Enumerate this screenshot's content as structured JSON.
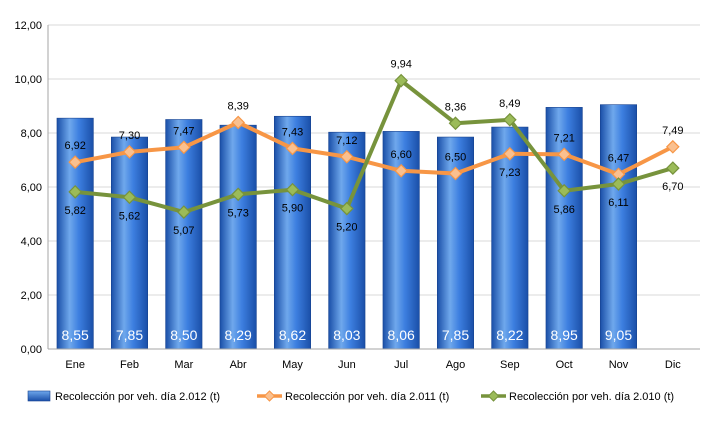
{
  "colors": {
    "bar_light": "#6FA8EC",
    "bar_mid": "#2F6FD0",
    "bar_dark": "#1A4FA8",
    "line_2011": "#F79646",
    "marker_2011_fill": "#FAC08F",
    "line_2010": "#77933C",
    "marker_2010_fill": "#9BBB59",
    "grid": "#D9D9D9",
    "axis_text": "#000000"
  },
  "chart_data": {
    "type": "bar",
    "categories": [
      "Ene",
      "Feb",
      "Mar",
      "Abr",
      "May",
      "Jun",
      "Jul",
      "Ago",
      "Sep",
      "Oct",
      "Nov",
      "Dic"
    ],
    "ylim": [
      0,
      12
    ],
    "yticks": [
      "0,00",
      "2,00",
      "4,00",
      "6,00",
      "8,00",
      "10,00",
      "12,00"
    ],
    "grid": true,
    "legend_position": "bottom",
    "series": [
      {
        "name": "Recolección por veh. día 2.012 (t)",
        "type": "bar",
        "values": [
          8.55,
          7.85,
          8.5,
          8.29,
          8.62,
          8.03,
          8.06,
          7.85,
          8.22,
          8.95,
          9.05,
          null
        ],
        "labels": [
          "8,55",
          "7,85",
          "8,50",
          "8,29",
          "8,62",
          "8,03",
          "8,06",
          "7,85",
          "8,22",
          "8,95",
          "9,05",
          ""
        ]
      },
      {
        "name": "Recolección por veh. día 2.011 (t)",
        "type": "line",
        "values": [
          6.92,
          7.3,
          7.47,
          8.39,
          7.43,
          7.12,
          6.6,
          6.5,
          7.23,
          7.21,
          6.47,
          7.49
        ],
        "labels": [
          "6,92",
          "7,30",
          "7,47",
          "8,39",
          "7,43",
          "7,12",
          "6,60",
          "6,50",
          "7,23",
          "7,21",
          "6,47",
          "7,49"
        ]
      },
      {
        "name": "Recolección por veh. día 2.010 (t)",
        "type": "line",
        "values": [
          5.82,
          5.62,
          5.07,
          5.73,
          5.9,
          5.2,
          9.94,
          8.36,
          8.49,
          5.86,
          6.11,
          6.7
        ],
        "labels": [
          "5,82",
          "5,62",
          "5,07",
          "5,73",
          "5,90",
          "5,20",
          "9,94",
          "8,36",
          "8,49",
          "5,86",
          "6,11",
          "6,70"
        ]
      }
    ]
  }
}
